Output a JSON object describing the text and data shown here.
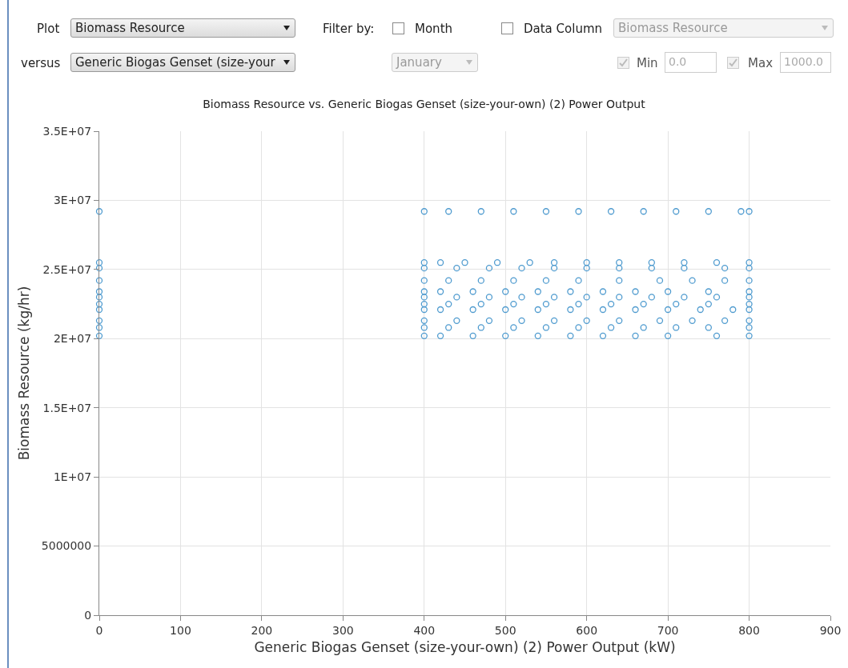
{
  "chart_data": {
    "type": "scatter",
    "title": "Biomass Resource vs. Generic Biogas Genset (size-your-own) (2) Power Output",
    "xlabel": "Generic Biogas Genset (size-your-own) (2) Power Output (kW)",
    "ylabel": "Biomass Resource (kg/hr)",
    "annotations": [
      "Plot",
      "Biomass Resource",
      "Filter by:",
      "Month",
      "Data Column",
      "Biomass Resource",
      "versus",
      "Generic Biogas Genset (size-your",
      "January",
      "Min",
      "0.0",
      "Max",
      "1000.0"
    ],
    "xlim": [
      0,
      900
    ],
    "xticks": [
      0,
      100,
      200,
      300,
      400,
      500,
      600,
      700,
      800,
      900
    ],
    "ylim": [
      0,
      35000000
    ],
    "yticks": [
      0,
      5000000,
      {
        "value": 10000000,
        "label": "1E+07"
      },
      {
        "value": 15000000,
        "label": "1.5E+07"
      },
      {
        "value": 20000000,
        "label": "2E+07"
      },
      {
        "value": 25000000,
        "label": "2.5E+07"
      },
      {
        "value": 30000000,
        "label": "3E+07"
      },
      {
        "value": 35000000,
        "label": "3.5E+07"
      }
    ],
    "grid": true,
    "marker": "circle",
    "series": [
      {
        "color": "#4f9bcf",
        "x": [
          0,
          400,
          430,
          470,
          510,
          550,
          590,
          630,
          670,
          710,
          750,
          790,
          800,
          0,
          400,
          420,
          450,
          490,
          530,
          560,
          600,
          640,
          680,
          720,
          760,
          800,
          0,
          400,
          440,
          480,
          520,
          560,
          600,
          640,
          680,
          720,
          770,
          800,
          0,
          400,
          430,
          470,
          510,
          550,
          590,
          640,
          690,
          730,
          770,
          800,
          0,
          400,
          420,
          460,
          500,
          540,
          580,
          620,
          660,
          700,
          750,
          800,
          0,
          400,
          440,
          480,
          520,
          560,
          600,
          640,
          680,
          720,
          760,
          800,
          0,
          400,
          430,
          470,
          510,
          550,
          590,
          630,
          670,
          710,
          750,
          800,
          0,
          400,
          420,
          460,
          500,
          540,
          580,
          620,
          660,
          700,
          740,
          780,
          800,
          0,
          400,
          440,
          480,
          520,
          560,
          600,
          640,
          690,
          730,
          770,
          800,
          0,
          400,
          430,
          470,
          510,
          550,
          590,
          630,
          670,
          710,
          750,
          800,
          0,
          400,
          420,
          460,
          500,
          540,
          580,
          620,
          660,
          700,
          760,
          800
        ],
        "values": [
          29200000,
          29200000,
          29200000,
          29200000,
          29200000,
          29200000,
          29200000,
          29200000,
          29200000,
          29200000,
          29200000,
          29200000,
          29200000,
          25500000,
          25500000,
          25500000,
          25500000,
          25500000,
          25500000,
          25500000,
          25500000,
          25500000,
          25500000,
          25500000,
          25500000,
          25500000,
          25100000,
          25100000,
          25100000,
          25100000,
          25100000,
          25100000,
          25100000,
          25100000,
          25100000,
          25100000,
          25100000,
          25100000,
          24200000,
          24200000,
          24200000,
          24200000,
          24200000,
          24200000,
          24200000,
          24200000,
          24200000,
          24200000,
          24200000,
          24200000,
          23400000,
          23400000,
          23400000,
          23400000,
          23400000,
          23400000,
          23400000,
          23400000,
          23400000,
          23400000,
          23400000,
          23400000,
          23000000,
          23000000,
          23000000,
          23000000,
          23000000,
          23000000,
          23000000,
          23000000,
          23000000,
          23000000,
          23000000,
          23000000,
          22500000,
          22500000,
          22500000,
          22500000,
          22500000,
          22500000,
          22500000,
          22500000,
          22500000,
          22500000,
          22500000,
          22500000,
          22100000,
          22100000,
          22100000,
          22100000,
          22100000,
          22100000,
          22100000,
          22100000,
          22100000,
          22100000,
          22100000,
          22100000,
          22100000,
          21300000,
          21300000,
          21300000,
          21300000,
          21300000,
          21300000,
          21300000,
          21300000,
          21300000,
          21300000,
          21300000,
          21300000,
          20800000,
          20800000,
          20800000,
          20800000,
          20800000,
          20800000,
          20800000,
          20800000,
          20800000,
          20800000,
          20800000,
          20800000,
          20200000,
          20200000,
          20200000,
          20200000,
          20200000,
          20200000,
          20200000,
          20200000,
          20200000,
          20200000,
          20200000,
          20200000
        ]
      }
    ]
  }
}
